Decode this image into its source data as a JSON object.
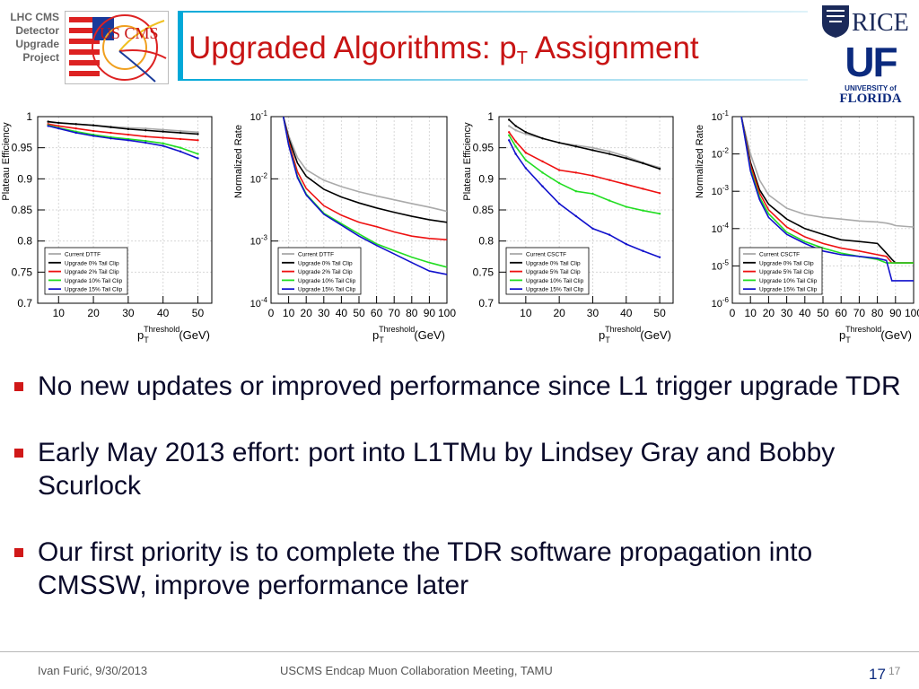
{
  "side_label": [
    "LHC CMS",
    "Detector",
    "Upgrade",
    "Project"
  ],
  "logo": {
    "text": "US CMS"
  },
  "title": {
    "main": "Upgraded Algorithms: p",
    "sub": "T",
    "rest": " Assignment"
  },
  "rice_logo": "RICE",
  "uf_logo": {
    "letters": "UF",
    "university": "UNIVERSITY of",
    "florida": "FLORIDA"
  },
  "colors": {
    "title": "#c81414",
    "bullet": "#d01818",
    "gray": "#aaaaaa",
    "black": "#000000",
    "red": "#ee1111",
    "green": "#22dd22",
    "blue": "#1111cc"
  },
  "chart_data": [
    {
      "type": "line",
      "xlabel": "p_T^Threshold (GeV)",
      "ylabel": "Plateau Efficiency",
      "xlim": [
        4,
        54
      ],
      "ylim": [
        0.7,
        1.0
      ],
      "xticks": [
        "10",
        "20",
        "30",
        "40",
        "50"
      ],
      "yticks": [
        "0.7",
        "0.75",
        "0.8",
        "0.85",
        "0.9",
        "0.95",
        "1"
      ],
      "legend": "bottom-left",
      "x": [
        7,
        10,
        15,
        20,
        25,
        30,
        35,
        40,
        45,
        50
      ],
      "series": [
        {
          "name": "Current DTTF",
          "color": "gray",
          "values": [
            0.991,
            0.99,
            0.988,
            0.986,
            0.984,
            0.982,
            0.981,
            0.979,
            0.977,
            0.975
          ]
        },
        {
          "name": "Upgrade 0% Tail Clip",
          "color": "black",
          "values": [
            0.992,
            0.99,
            0.988,
            0.986,
            0.983,
            0.98,
            0.978,
            0.976,
            0.974,
            0.972
          ]
        },
        {
          "name": "Upgrade 2% Tail Clip",
          "color": "red",
          "values": [
            0.988,
            0.985,
            0.981,
            0.977,
            0.974,
            0.971,
            0.968,
            0.966,
            0.964,
            0.962
          ]
        },
        {
          "name": "Upgrade 10% Tail Clip",
          "color": "green",
          "values": [
            0.986,
            0.982,
            0.976,
            0.971,
            0.967,
            0.964,
            0.961,
            0.957,
            0.95,
            0.94
          ]
        },
        {
          "name": "Upgrade 15% Tail Clip",
          "color": "blue",
          "values": [
            0.985,
            0.981,
            0.974,
            0.969,
            0.965,
            0.962,
            0.958,
            0.953,
            0.944,
            0.933
          ]
        }
      ]
    },
    {
      "type": "line",
      "xlabel": "p_T^Threshold (GeV)",
      "ylabel": "Normalized Rate",
      "log_y": true,
      "xlim": [
        0,
        100
      ],
      "ylim_exp": [
        -4,
        -1
      ],
      "xticks": [
        "0",
        "10",
        "20",
        "30",
        "40",
        "50",
        "60",
        "70",
        "80",
        "90",
        "100"
      ],
      "yticks": [
        "10-4",
        "10-3",
        "10-2",
        "10-1"
      ],
      "legend": "bottom-left",
      "x": [
        7,
        10,
        15,
        20,
        30,
        40,
        50,
        60,
        70,
        80,
        90,
        100
      ],
      "series": [
        {
          "name": "Current DTTF",
          "color": "gray",
          "values": [
            0.1,
            0.05,
            0.022,
            0.014,
            0.0095,
            0.0075,
            0.0062,
            0.0053,
            0.0046,
            0.004,
            0.0035,
            0.003
          ]
        },
        {
          "name": "Upgrade 0% Tail Clip",
          "color": "black",
          "values": [
            0.1,
            0.045,
            0.018,
            0.011,
            0.0068,
            0.0051,
            0.0041,
            0.0034,
            0.0029,
            0.0025,
            0.0022,
            0.002
          ]
        },
        {
          "name": "Upgrade 2% Tail Clip",
          "color": "red",
          "values": [
            0.1,
            0.04,
            0.013,
            0.007,
            0.0037,
            0.0026,
            0.002,
            0.0017,
            0.0014,
            0.0012,
            0.0011,
            0.00105
          ]
        },
        {
          "name": "Upgrade 10% Tail Clip",
          "color": "green",
          "values": [
            0.1,
            0.036,
            0.011,
            0.0057,
            0.0028,
            0.0019,
            0.0013,
            0.0009,
            0.0007,
            0.00055,
            0.00045,
            0.00038
          ]
        },
        {
          "name": "Upgrade 15% Tail Clip",
          "color": "blue",
          "values": [
            0.1,
            0.035,
            0.0105,
            0.0055,
            0.0027,
            0.0018,
            0.0012,
            0.00085,
            0.00062,
            0.00045,
            0.00033,
            0.00029
          ]
        }
      ]
    },
    {
      "type": "line",
      "xlabel": "p_T^Threshold (GeV)",
      "ylabel": "Plateau Efficiency",
      "xlim": [
        2,
        54
      ],
      "ylim": [
        0.7,
        1.0
      ],
      "xticks": [
        "10",
        "20",
        "30",
        "40",
        "50"
      ],
      "yticks": [
        "0.7",
        "0.75",
        "0.8",
        "0.85",
        "0.9",
        "0.95",
        "1"
      ],
      "legend": "bottom-left",
      "x": [
        5,
        7,
        10,
        15,
        20,
        25,
        30,
        35,
        40,
        45,
        50
      ],
      "series": [
        {
          "name": "Current CSCTF",
          "color": "gray",
          "values": [
            0.985,
            0.978,
            0.972,
            0.965,
            0.958,
            0.954,
            0.95,
            0.944,
            0.936,
            0.926,
            0.918
          ]
        },
        {
          "name": "Upgrade 0% Tail Clip",
          "color": "black",
          "values": [
            0.995,
            0.985,
            0.975,
            0.965,
            0.958,
            0.952,
            0.946,
            0.94,
            0.933,
            0.925,
            0.916
          ]
        },
        {
          "name": "Upgrade 5% Tail Clip",
          "color": "red",
          "values": [
            0.975,
            0.96,
            0.942,
            0.928,
            0.914,
            0.91,
            0.905,
            0.898,
            0.891,
            0.884,
            0.877
          ]
        },
        {
          "name": "Upgrade 10% Tail Clip",
          "color": "green",
          "values": [
            0.97,
            0.952,
            0.93,
            0.91,
            0.893,
            0.88,
            0.876,
            0.865,
            0.855,
            0.849,
            0.844
          ]
        },
        {
          "name": "Upgrade 15% Tail Clip",
          "color": "blue",
          "values": [
            0.962,
            0.94,
            0.917,
            0.888,
            0.86,
            0.84,
            0.82,
            0.81,
            0.795,
            0.784,
            0.774
          ]
        }
      ]
    },
    {
      "type": "line",
      "xlabel": "p_T^Threshold (GeV)",
      "ylabel": "Normalized Rate",
      "log_y": true,
      "xlim": [
        0,
        100
      ],
      "ylim_exp": [
        -6,
        -1
      ],
      "xticks": [
        "0",
        "10",
        "20",
        "30",
        "40",
        "50",
        "60",
        "70",
        "80",
        "90",
        "100"
      ],
      "yticks": [
        "10-6",
        "10-5",
        "10-4",
        "10-3",
        "10-2",
        "10-1"
      ],
      "legend": "bottom-left",
      "x": [
        5,
        10,
        15,
        20,
        30,
        40,
        50,
        60,
        70,
        80,
        85,
        88,
        90,
        100
      ],
      "series": [
        {
          "name": "Current CSCTF",
          "color": "gray",
          "values": [
            0.1,
            0.01,
            0.002,
            0.0008,
            0.00035,
            0.00024,
            0.0002,
            0.00018,
            0.00016,
            0.00015,
            0.00014,
            0.00013,
            0.00012,
            0.00011
          ]
        },
        {
          "name": "Upgrade 0% Tail Clip",
          "color": "black",
          "values": [
            0.1,
            0.006,
            0.0011,
            0.00045,
            0.00018,
            0.0001,
            7e-05,
            5e-05,
            4.5e-05,
            4e-05,
            2.2e-05,
            1.5e-05,
            1.2e-05,
            1.2e-05
          ]
        },
        {
          "name": "Upgrade 5% Tail Clip",
          "color": "red",
          "values": [
            0.1,
            0.005,
            0.0009,
            0.00032,
            0.00011,
            6e-05,
            4e-05,
            3e-05,
            2.5e-05,
            2e-05,
            1.8e-05,
            1.2e-05,
            1.2e-05,
            1.2e-05
          ]
        },
        {
          "name": "Upgrade 10% Tail Clip",
          "color": "green",
          "values": [
            0.1,
            0.004,
            0.0007,
            0.00025,
            8e-05,
            4.5e-05,
            3e-05,
            2.2e-05,
            1.8e-05,
            1.5e-05,
            1.2e-05,
            1.2e-05,
            1.2e-05,
            1.2e-05
          ]
        },
        {
          "name": "Upgrade 15% Tail Clip",
          "color": "blue",
          "values": [
            0.1,
            0.0035,
            0.0006,
            0.0002,
            7e-05,
            4e-05,
            2.5e-05,
            2e-05,
            1.8e-05,
            1.6e-05,
            1.4e-05,
            4e-06,
            4e-06,
            4e-06
          ]
        }
      ]
    }
  ],
  "bullets": [
    "No new updates or improved performance since L1 trigger upgrade TDR",
    "Early May 2013 effort: port into L1TMu by Lindsey Gray and Bobby Scurlock",
    "Our first priority is to complete the TDR software propagation into CMSSW, improve performance later"
  ],
  "footer": {
    "left": "Ivan Furić, 9/30/2013",
    "center": "USCMS Endcap Muon Collaboration Meeting, TAMU",
    "page": "17",
    "page_small": "17"
  }
}
